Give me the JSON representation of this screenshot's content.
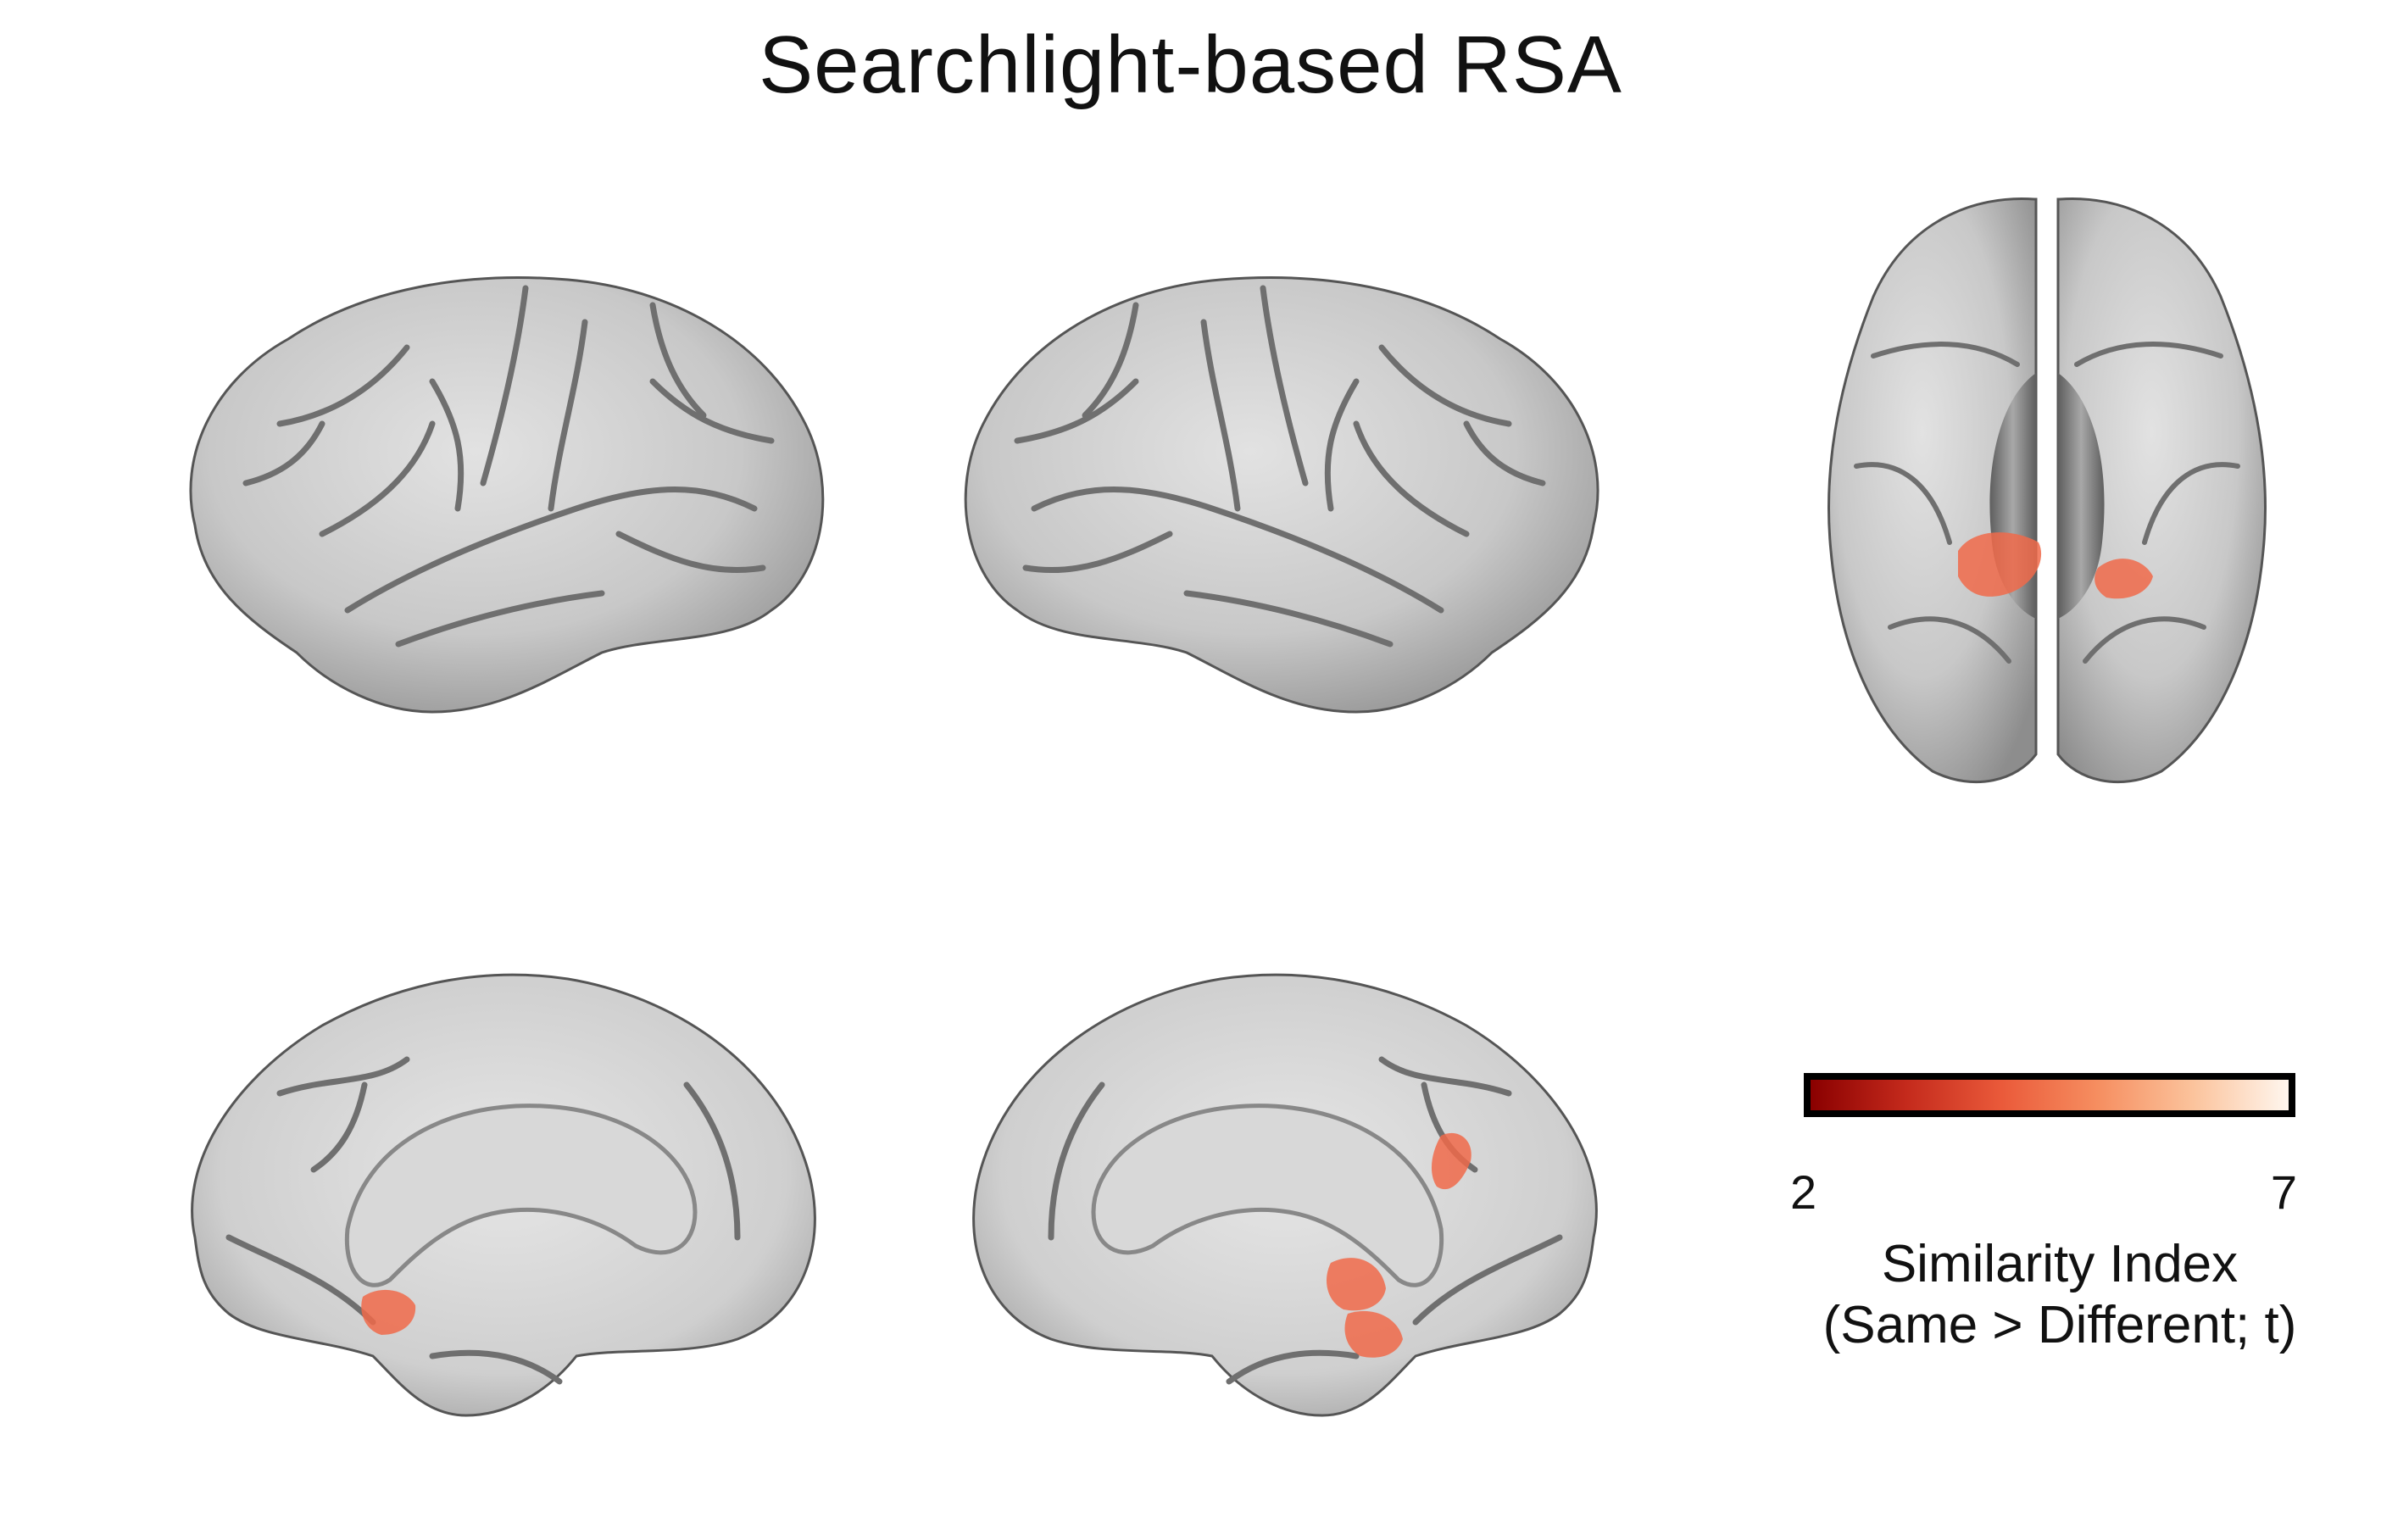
{
  "title": "Searchlight-based RSA",
  "views": [
    {
      "name": "left-lateral-view",
      "clusters": 0
    },
    {
      "name": "right-lateral-view",
      "clusters": 0
    },
    {
      "name": "ventral-view",
      "clusters": 2
    },
    {
      "name": "left-medial-view",
      "clusters": 1
    },
    {
      "name": "right-medial-view",
      "clusters": 3
    }
  ],
  "colorbar": {
    "min_label": "2",
    "max_label": "7",
    "min": 2,
    "max": 7,
    "colormap": [
      "#8a0000",
      "#c42a1c",
      "#ea5a3a",
      "#f68e60",
      "#fbc39c",
      "#fff6ee"
    ],
    "label_line1": "Similarity Index",
    "label_line2": "(Same > Different; t)"
  },
  "colors": {
    "cortex": "#c9c9c9",
    "sulcus": "#6f6f6f",
    "activation": "#f06a4a"
  }
}
